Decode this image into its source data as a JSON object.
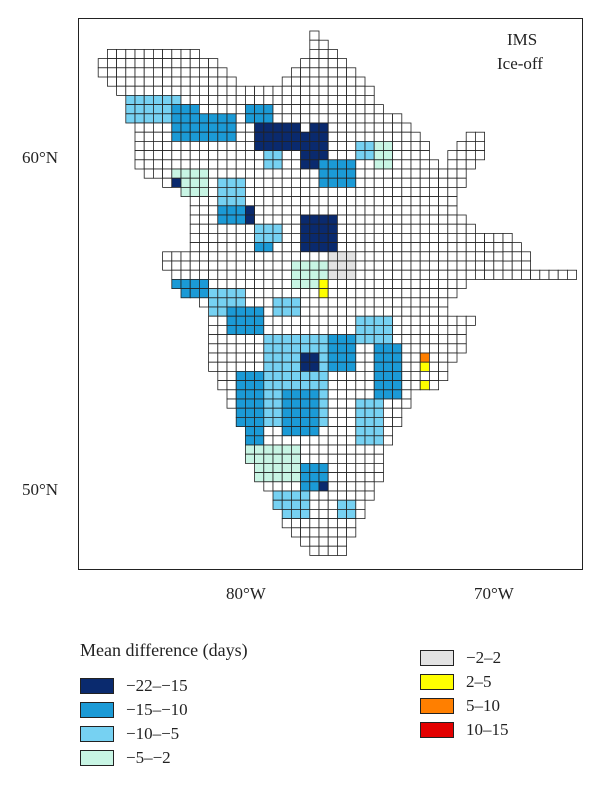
{
  "map": {
    "title_line1": "IMS",
    "title_line2": "Ice-off",
    "lat_labels": {
      "north60": "60°N",
      "north50": "50°N"
    },
    "lon_labels": {
      "west80": "80°W",
      "west70": "70°W"
    }
  },
  "legend": {
    "title": "Mean difference (days)",
    "items": [
      {
        "label": "−22–−15",
        "color": "#0a2a6e"
      },
      {
        "label": "−15–−10",
        "color": "#1b9ad6"
      },
      {
        "label": "−10–−5",
        "color": "#76d1f2"
      },
      {
        "label": "−5–−2",
        "color": "#c8f5e4"
      },
      {
        "label": "−2–2",
        "color": "#e3e3e3"
      },
      {
        "label": "2–5",
        "color": "#ffff00"
      },
      {
        "label": "5–10",
        "color": "#ff7f00"
      },
      {
        "label": "10–15",
        "color": "#e30000"
      }
    ]
  }
}
